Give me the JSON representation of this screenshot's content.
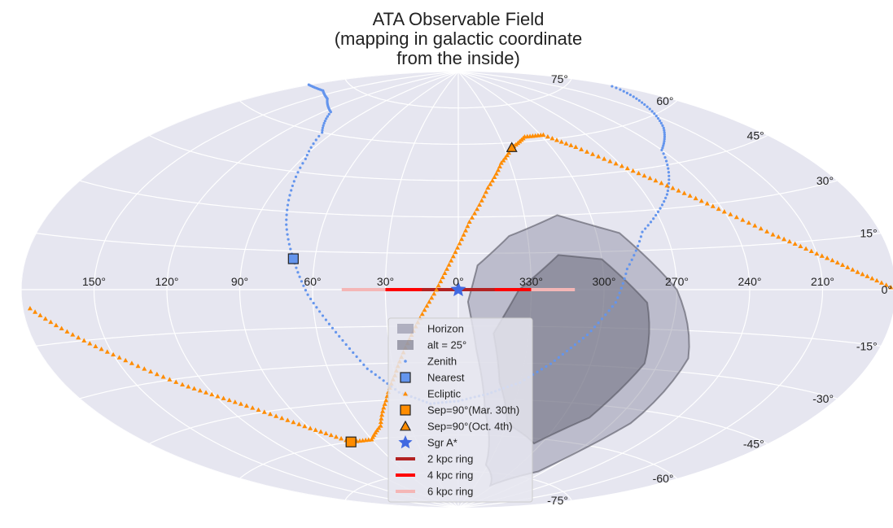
{
  "chart_data": {
    "type": "scatter",
    "projection": "aitoff",
    "title": [
      "ATA Observable Field",
      "(mapping in galactic coordinate",
      "from the inside)"
    ],
    "background_color": "#e6e6f0",
    "grid": true,
    "x_ticks": [
      "150°",
      "120°",
      "90°",
      "60°",
      "30°",
      "0°",
      "330°",
      "300°",
      "270°",
      "240°",
      "210°"
    ],
    "y_ticks": [
      "75°",
      "60°",
      "45°",
      "30°",
      "15°",
      "0°",
      "-15°",
      "-30°",
      "-45°",
      "-60°",
      "-75°"
    ],
    "xlim_deg": [
      -180,
      180
    ],
    "ylim_deg": [
      -90,
      90
    ],
    "series": [
      {
        "name": "Horizon",
        "kind": "region",
        "color": "#8a8aa0",
        "opacity": 0.45,
        "boundary": [
          [
            -4,
            -5
          ],
          [
            -8,
            -25
          ],
          [
            -15,
            -50
          ],
          [
            -28,
            -72
          ],
          [
            -55,
            -80
          ],
          [
            -85,
            -72
          ],
          [
            -100,
            -50
          ],
          [
            -102,
            -25
          ],
          [
            -90,
            0
          ],
          [
            -70,
            22
          ],
          [
            -45,
            30
          ],
          [
            -22,
            22
          ],
          [
            -8,
            10
          ],
          [
            -4,
            -5
          ]
        ]
      },
      {
        "name": "alt = 25°",
        "kind": "region",
        "color": "#6e6e7e",
        "opacity": 0.55,
        "boundary": [
          [
            -15,
            -18
          ],
          [
            -20,
            -38
          ],
          [
            -30,
            -55
          ],
          [
            -55,
            -62
          ],
          [
            -75,
            -50
          ],
          [
            -84,
            -28
          ],
          [
            -78,
            -5
          ],
          [
            -60,
            12
          ],
          [
            -42,
            14
          ],
          [
            -25,
            0
          ],
          [
            -15,
            -18
          ]
        ]
      },
      {
        "name": "Zenith",
        "kind": "points",
        "marker": "dot",
        "color": "#6495ed",
        "points": [
          [
            -120,
            50
          ],
          [
            -140,
            56
          ],
          [
            -160,
            63
          ],
          [
            -175,
            68
          ],
          [
            180,
            70
          ],
          [
            160,
            71
          ],
          [
            140,
            70
          ],
          [
            115,
            67
          ],
          [
            97,
            60
          ],
          [
            88,
            50
          ],
          [
            82,
            38
          ],
          [
            76,
            25
          ],
          [
            69,
            12
          ],
          [
            62,
            -2
          ],
          [
            52,
            -17
          ],
          [
            42,
            -32
          ],
          [
            30,
            -42
          ],
          [
            15,
            -47
          ],
          [
            0,
            -46
          ],
          [
            -15,
            -43
          ],
          [
            -30,
            -38
          ],
          [
            -42,
            -30
          ],
          [
            -55,
            -18
          ],
          [
            -65,
            -5
          ],
          [
            -70,
            8
          ],
          [
            -80,
            22
          ],
          [
            -100,
            35
          ],
          [
            -120,
            50
          ]
        ]
      },
      {
        "name": "Nearest",
        "kind": "point",
        "marker": "square",
        "color": "#6495ed",
        "points": [
          [
            69,
            12
          ]
        ]
      },
      {
        "name": "Ecliptic",
        "kind": "points",
        "marker": "triangle",
        "color": "#ff8c00",
        "points": [
          [
            177,
            -5
          ],
          [
            150,
            -20
          ],
          [
            130,
            -32
          ],
          [
            110,
            -42
          ],
          [
            90,
            -53
          ],
          [
            75,
            -60
          ],
          [
            60,
            -60
          ],
          [
            48,
            -55
          ],
          [
            38,
            -45
          ],
          [
            30,
            -35
          ],
          [
            22,
            -22
          ],
          [
            15,
            -10
          ],
          [
            9,
            0
          ],
          [
            3,
            12
          ],
          [
            -5,
            28
          ],
          [
            -15,
            42
          ],
          [
            -25,
            52
          ],
          [
            -35,
            58
          ],
          [
            -48,
            62
          ],
          [
            -62,
            62
          ],
          [
            -75,
            56
          ],
          [
            -90,
            47
          ],
          [
            -105,
            37
          ],
          [
            -120,
            27
          ],
          [
            -135,
            18
          ],
          [
            -150,
            11
          ],
          [
            -165,
            5
          ],
          [
            -180,
            0
          ]
        ]
      },
      {
        "name": "Sep=90°(Mar. 30th)",
        "kind": "point",
        "marker": "square",
        "color": "#ff8c00",
        "points": [
          [
            75,
            -60
          ]
        ]
      },
      {
        "name": "Sep=90°(Oct. 4th)",
        "kind": "point",
        "marker": "triangle",
        "color": "#ff8c00",
        "points": [
          [
            -35,
            58
          ]
        ]
      },
      {
        "name": "Sgr A*",
        "kind": "point",
        "marker": "star",
        "color": "#4169e1",
        "points": [
          [
            0,
            0
          ]
        ]
      },
      {
        "name": "2 kpc ring",
        "kind": "line",
        "color": "#b22222",
        "lon_range": [
          15,
          -15
        ]
      },
      {
        "name": "4 kpc ring",
        "kind": "line",
        "color": "#ff0000",
        "lon_range": [
          30,
          -30
        ]
      },
      {
        "name": "6 kpc ring",
        "kind": "line",
        "color": "#f4b6b6",
        "lon_range": [
          48,
          -48
        ]
      }
    ]
  }
}
